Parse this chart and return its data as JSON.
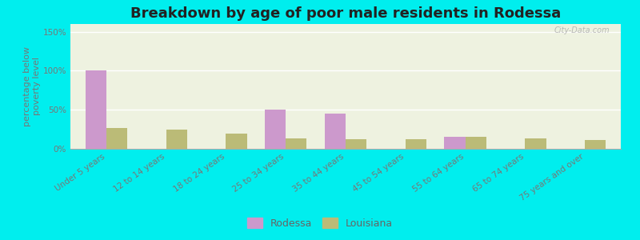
{
  "title": "Breakdown by age of poor male residents in Rodessa",
  "ylabel": "percentage below\npoverty level",
  "categories": [
    "Under 5 years",
    "12 to 14 years",
    "18 to 24 years",
    "25 to 34 years",
    "35 to 44 years",
    "45 to 54 years",
    "55 to 64 years",
    "65 to 74 years",
    "75 years and over"
  ],
  "rodessa_values": [
    100,
    0,
    0,
    50,
    45,
    0,
    15,
    0,
    0
  ],
  "louisiana_values": [
    27,
    25,
    20,
    13,
    12,
    12,
    15,
    13,
    11
  ],
  "rodessa_color": "#cc99cc",
  "louisiana_color": "#bbbb77",
  "bar_width": 0.35,
  "ylim": [
    0,
    160
  ],
  "yticks": [
    0,
    50,
    100,
    150
  ],
  "ytick_labels": [
    "0%",
    "50%",
    "100%",
    "150%"
  ],
  "background_color": "#00eeee",
  "plot_bg_color": "#eef2e0",
  "title_fontsize": 13,
  "axis_label_fontsize": 8,
  "tick_fontsize": 7.5,
  "legend_labels": [
    "Rodessa",
    "Louisiana"
  ],
  "watermark": "City-Data.com"
}
